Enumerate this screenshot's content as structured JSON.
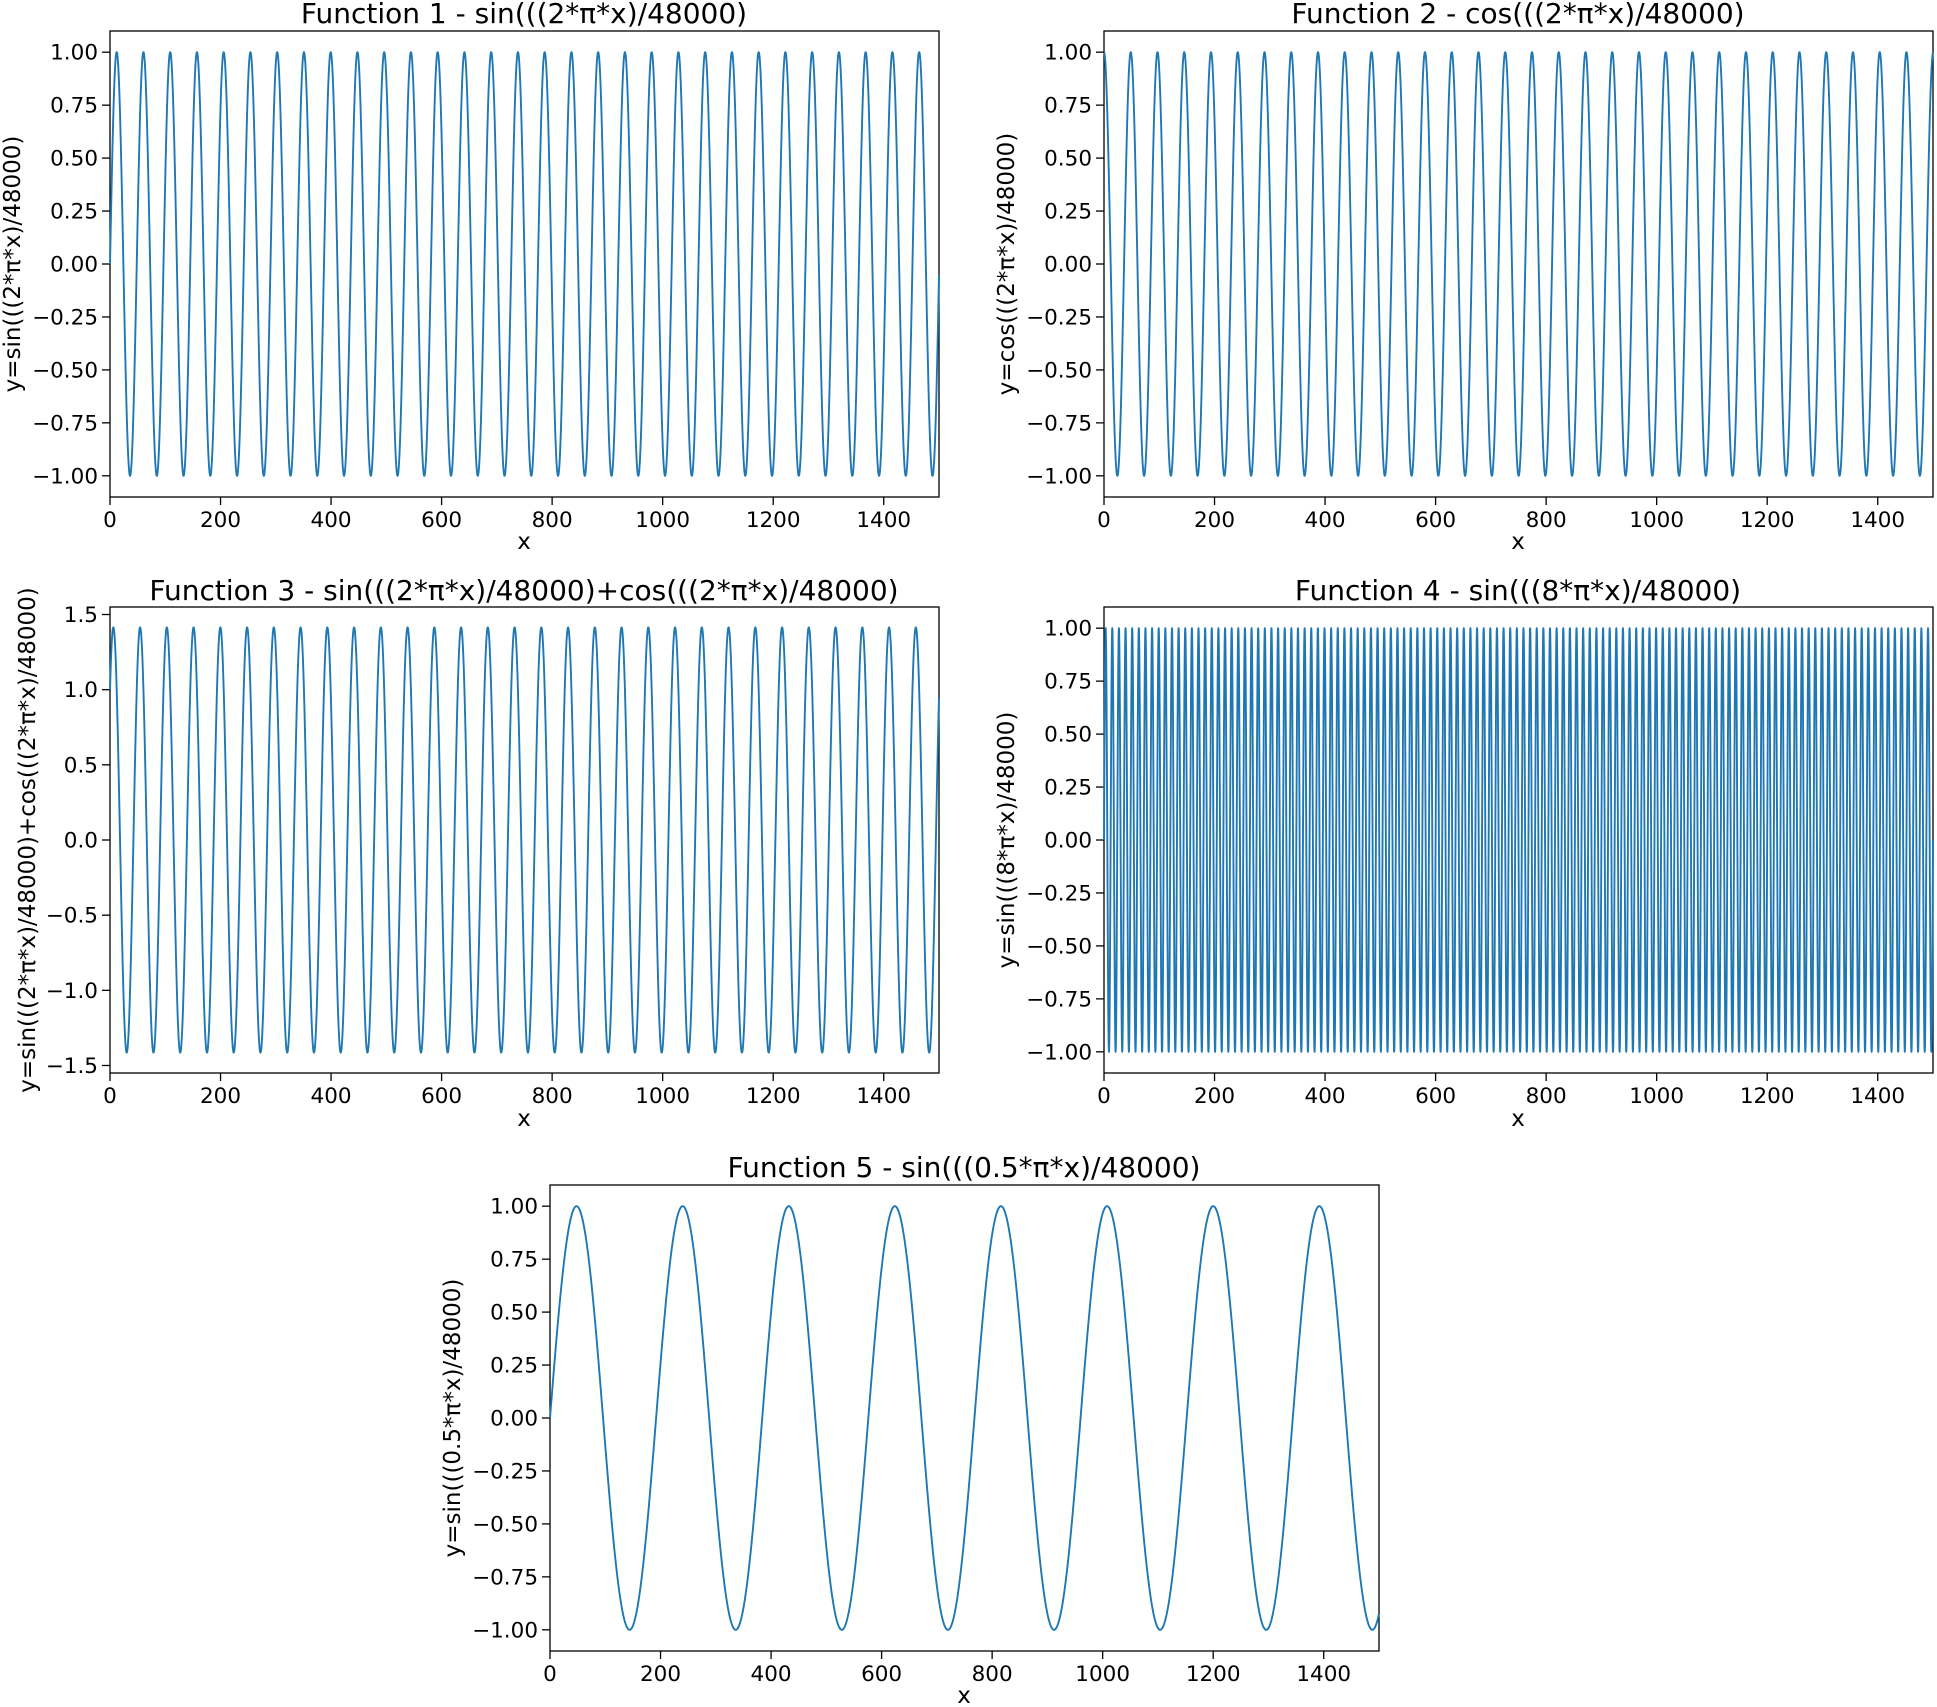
{
  "figure": {
    "background": "#ffffff",
    "line_color": "#1f77b4"
  },
  "chart_data": [
    {
      "type": "line",
      "title": "Function 1 - sin(((2*π*x)/48000)",
      "xlabel": "x",
      "ylabel": "y=sin(((2*π*x)/48000)",
      "xlim": [
        0,
        1500
      ],
      "ylim": [
        -1.1,
        1.1
      ],
      "xticks": [
        0,
        200,
        400,
        600,
        800,
        1000,
        1200,
        1400
      ],
      "xtick_labels": [
        "0",
        "200",
        "400",
        "600",
        "800",
        "1000",
        "1200",
        "1400"
      ],
      "yticks": [
        1.0,
        0.75,
        0.5,
        0.25,
        0.0,
        -0.25,
        -0.5,
        -0.75,
        -1.0
      ],
      "ytick_labels": [
        "1.00",
        "0.75",
        "0.50",
        "0.25",
        "0.00",
        "−0.25",
        "−0.50",
        "−0.75",
        "−1.00"
      ],
      "grid": false,
      "series": [
        {
          "function": "sin",
          "amplitude": 1.0,
          "period": 48.4,
          "phase": 0,
          "x_range": [
            0,
            1500
          ]
        }
      ]
    },
    {
      "type": "line",
      "title": "Function 2 - cos(((2*π*x)/48000)",
      "xlabel": "x",
      "ylabel": "y=cos(((2*π*x)/48000)",
      "xlim": [
        0,
        1500
      ],
      "ylim": [
        -1.1,
        1.1
      ],
      "xticks": [
        0,
        200,
        400,
        600,
        800,
        1000,
        1200,
        1400
      ],
      "xtick_labels": [
        "0",
        "200",
        "400",
        "600",
        "800",
        "1000",
        "1200",
        "1400"
      ],
      "yticks": [
        1.0,
        0.75,
        0.5,
        0.25,
        0.0,
        -0.25,
        -0.5,
        -0.75,
        -1.0
      ],
      "ytick_labels": [
        "1.00",
        "0.75",
        "0.50",
        "0.25",
        "0.00",
        "−0.25",
        "−0.50",
        "−0.75",
        "−1.00"
      ],
      "grid": false,
      "series": [
        {
          "function": "cos",
          "amplitude": 1.0,
          "period": 48.4,
          "phase": 0,
          "x_range": [
            0,
            1500
          ]
        }
      ]
    },
    {
      "type": "line",
      "title": "Function 3 - sin(((2*π*x)/48000)+cos(((2*π*x)/48000)",
      "xlabel": "x",
      "ylabel": "y=sin(((2*π*x)/48000)+cos(((2*π*x)/48000)",
      "xlim": [
        0,
        1500
      ],
      "ylim": [
        -1.55,
        1.55
      ],
      "xticks": [
        0,
        200,
        400,
        600,
        800,
        1000,
        1200,
        1400
      ],
      "xtick_labels": [
        "0",
        "200",
        "400",
        "600",
        "800",
        "1000",
        "1200",
        "1400"
      ],
      "yticks": [
        1.5,
        1.0,
        0.5,
        0.0,
        -0.5,
        -1.0,
        -1.5
      ],
      "ytick_labels": [
        "1.5",
        "1.0",
        "0.5",
        "0.0",
        "−0.5",
        "−1.0",
        "−1.5"
      ],
      "grid": false,
      "series": [
        {
          "function": "sin+cos",
          "amplitude": 1.0,
          "period": 48.4,
          "phase": 0,
          "x_range": [
            0,
            1500
          ]
        }
      ]
    },
    {
      "type": "line",
      "title": "Function 4 - sin(((8*π*x)/48000)",
      "xlabel": "x",
      "ylabel": "y=sin(((8*π*x)/48000)",
      "xlim": [
        0,
        1500
      ],
      "ylim": [
        -1.1,
        1.1
      ],
      "xticks": [
        0,
        200,
        400,
        600,
        800,
        1000,
        1200,
        1400
      ],
      "xtick_labels": [
        "0",
        "200",
        "400",
        "600",
        "800",
        "1000",
        "1200",
        "1400"
      ],
      "yticks": [
        1.0,
        0.75,
        0.5,
        0.25,
        0.0,
        -0.25,
        -0.5,
        -0.75,
        -1.0
      ],
      "ytick_labels": [
        "1.00",
        "0.75",
        "0.50",
        "0.25",
        "0.00",
        "−0.25",
        "−0.50",
        "−0.75",
        "−1.00"
      ],
      "grid": false,
      "series": [
        {
          "function": "sin",
          "amplitude": 1.0,
          "period": 12.0,
          "phase": 0,
          "x_range": [
            0,
            1500
          ]
        }
      ]
    },
    {
      "type": "line",
      "title": "Function 5 - sin(((0.5*π*x)/48000)",
      "xlabel": "x",
      "ylabel": "y=sin(((0.5*π*x)/48000)",
      "xlim": [
        0,
        1500
      ],
      "ylim": [
        -1.1,
        1.1
      ],
      "xticks": [
        0,
        200,
        400,
        600,
        800,
        1000,
        1200,
        1400
      ],
      "xtick_labels": [
        "0",
        "200",
        "400",
        "600",
        "800",
        "1000",
        "1200",
        "1400"
      ],
      "yticks": [
        1.0,
        0.75,
        0.5,
        0.25,
        0.0,
        -0.25,
        -0.5,
        -0.75,
        -1.0
      ],
      "ytick_labels": [
        "1.00",
        "0.75",
        "0.50",
        "0.25",
        "0.00",
        "−0.25",
        "−0.50",
        "−0.75",
        "−1.00"
      ],
      "grid": false,
      "series": [
        {
          "function": "sin",
          "amplitude": 1.0,
          "period": 192.0,
          "phase": 0,
          "x_range": [
            0,
            1500
          ]
        }
      ]
    }
  ]
}
